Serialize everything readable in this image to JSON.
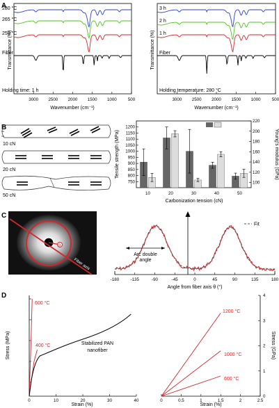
{
  "panel_labels": [
    "A",
    "B",
    "C",
    "D"
  ],
  "colors": {
    "blue": "#2b3ed0",
    "green": "#4ec41e",
    "red": "#d3262a",
    "black": "#000000",
    "fit": "#555555"
  },
  "chart_data": [
    {
      "id": "A1",
      "type": "line",
      "xlabel": "Wavenumber (cm⁻¹)",
      "ylabel": "Transmittance (%)",
      "xlim": [
        3500,
        500
      ],
      "x_ticks": [
        3000,
        2500,
        2000,
        1500,
        1000,
        500
      ],
      "series": [
        {
          "name": "280 °C",
          "color": "blue"
        },
        {
          "name": "265 °C",
          "color": "green"
        },
        {
          "name": "250 °C",
          "color": "red"
        },
        {
          "name": "Fiber",
          "color": "black"
        }
      ],
      "annotation": "Holding time: 1 h"
    },
    {
      "id": "A2",
      "type": "line",
      "xlabel": "Wavenumber (cm⁻¹)",
      "ylabel": "Transmittance (%)",
      "xlim": [
        3500,
        500
      ],
      "x_ticks": [
        3000,
        2500,
        2000,
        1500,
        1000,
        500
      ],
      "series": [
        {
          "name": "3 h",
          "color": "blue"
        },
        {
          "name": "2 h",
          "color": "green"
        },
        {
          "name": "1 h",
          "color": "red"
        },
        {
          "name": "Fiber",
          "color": "black"
        }
      ],
      "annotation": "Holding temperature: 280 °C"
    },
    {
      "id": "B",
      "type": "bar",
      "xlabel": "Carbonization tension (cN)",
      "ylabel": "Tensile strength (MPa)",
      "ylabel_right": "Young's modulus (GPa)",
      "categories": [
        "10",
        "20",
        "30",
        "40",
        "50"
      ],
      "ylim": [
        700,
        1250
      ],
      "y_ticks": [
        750,
        800,
        850,
        900,
        950,
        1000,
        1050,
        1100,
        1150,
        1200
      ],
      "ylim_right": [
        90,
        220
      ],
      "y_ticks_right": [
        100,
        120,
        140,
        160,
        180,
        200,
        220
      ],
      "series": [
        {
          "name": "Tensile strength",
          "axis": "left",
          "values": [
            910,
            1110,
            1000,
            885,
            795
          ],
          "errors": [
            110,
            90,
            180,
            25,
            25
          ]
        },
        {
          "name": "Young's modulus",
          "axis": "right",
          "values": [
            110,
            195,
            105,
            155,
            118
          ],
          "errors": [
            8,
            6,
            3,
            5,
            8
          ]
        }
      ],
      "schematic_labels": [
        "10 cN",
        "20 cN",
        "50 cN"
      ]
    },
    {
      "id": "C",
      "type": "line",
      "xlabel": "Angle from fiber axis θ (°)",
      "xlim": [
        -180,
        180
      ],
      "x_ticks": [
        -180,
        -135,
        -90,
        -45,
        0,
        45,
        90,
        135,
        180
      ],
      "series": [
        {
          "name": "Fit",
          "style": "dashed"
        }
      ],
      "annotations": [
        "Arc double",
        "angle"
      ],
      "image_labels": [
        "Fiber axis",
        "θ"
      ]
    },
    {
      "id": "D1",
      "type": "line",
      "xlabel": "Strain (%)",
      "ylabel": "Stress (MPa)",
      "xlim": [
        0,
        40
      ],
      "x_ticks": [
        0,
        10,
        20,
        30,
        40
      ],
      "labels": [
        "600 °C",
        "400 °C",
        "Stabilized PAN",
        "nanofiber"
      ]
    },
    {
      "id": "D2",
      "type": "line",
      "xlabel": "Strain (%)",
      "ylabel": "Stress (GPa)",
      "xlim": [
        0,
        2.5
      ],
      "x_ticks": [
        0,
        0.5,
        1.0,
        1.5,
        2.0,
        2.5
      ],
      "ylim": [
        0,
        4
      ],
      "y_ticks": [
        0,
        1,
        2,
        3,
        4
      ],
      "series": [
        {
          "name": "1200 °C",
          "x": [
            0,
            1.5
          ],
          "y": [
            0,
            3.3
          ]
        },
        {
          "name": "1000 °C",
          "x": [
            0,
            1.5
          ],
          "y": [
            0,
            1.8
          ]
        },
        {
          "name": "600 °C",
          "x": [
            0,
            1.5
          ],
          "y": [
            0,
            0.8
          ]
        }
      ]
    }
  ]
}
